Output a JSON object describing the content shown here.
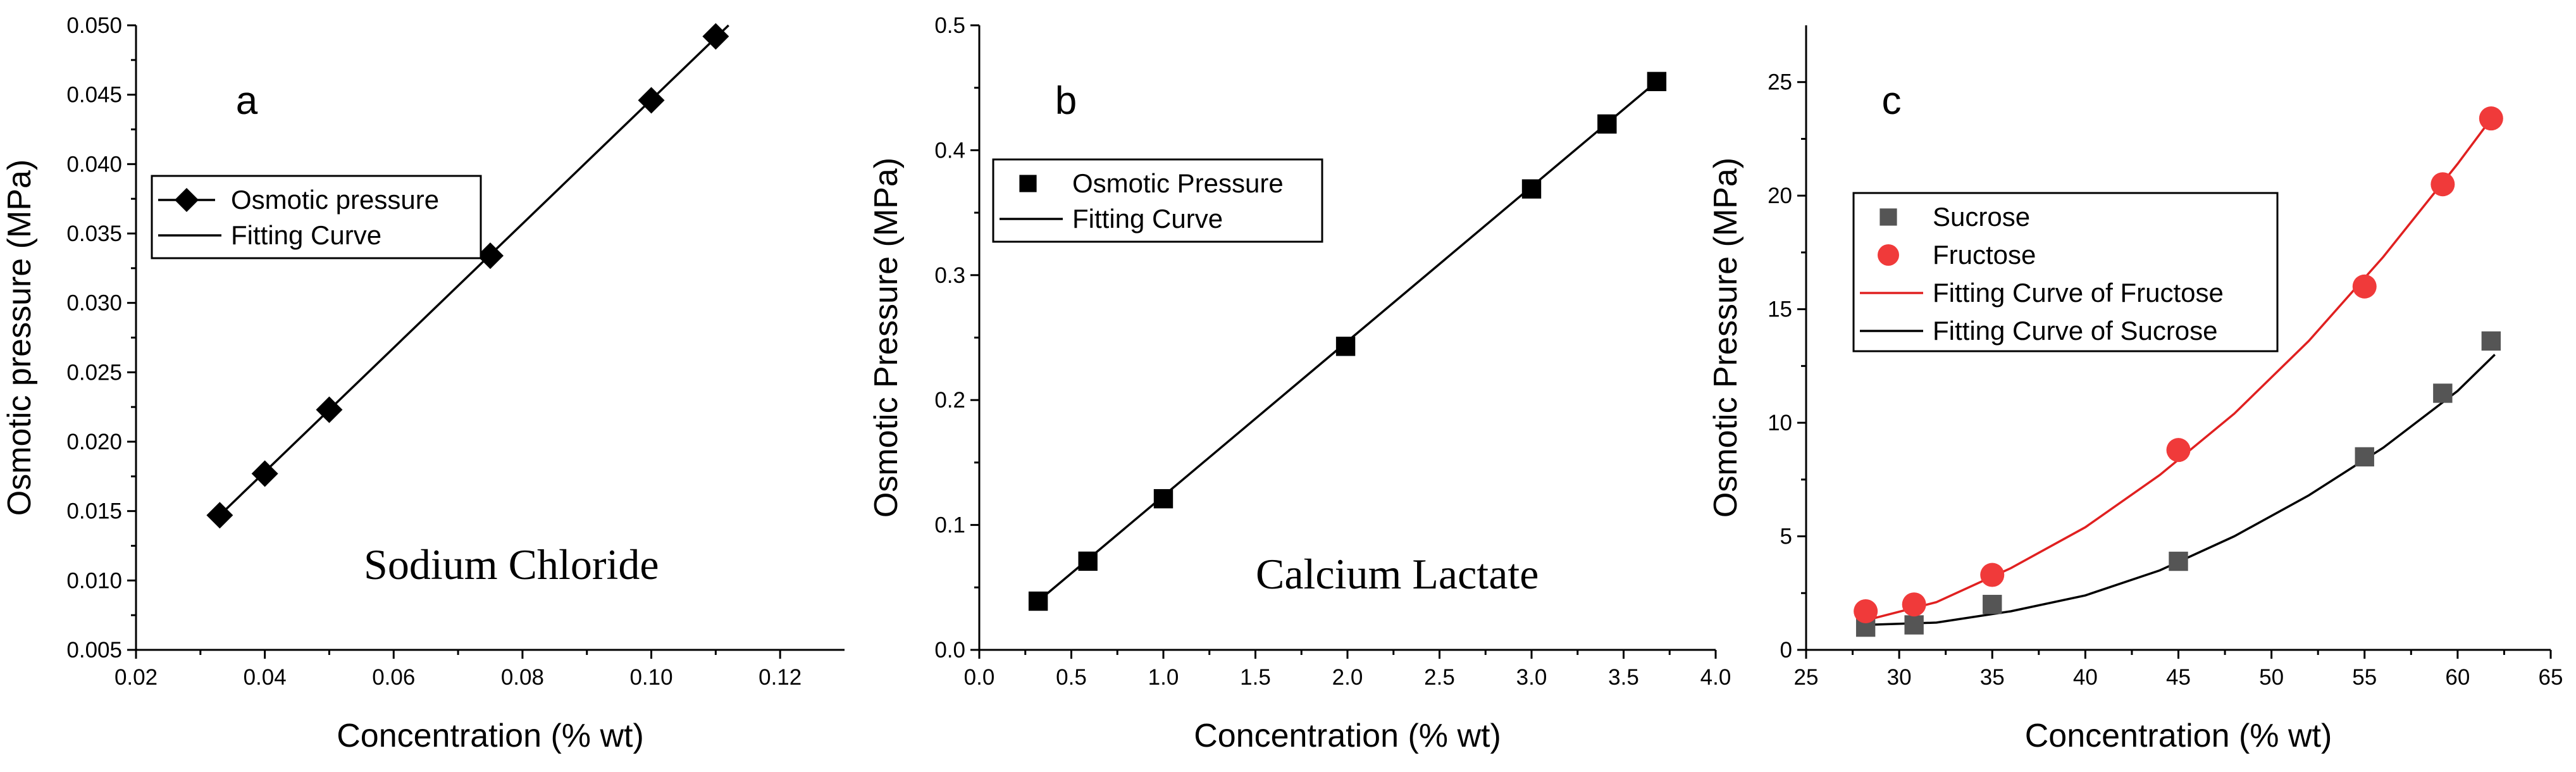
{
  "chart_data": [
    {
      "type": "line",
      "panel_label": "a",
      "annotation": "Sodium Chloride",
      "xlabel": "Concentration (% wt)",
      "ylabel": "Osmotic pressure (MPa)",
      "xlim": [
        0.02,
        0.13
      ],
      "ylim": [
        0.005,
        0.05
      ],
      "x_ticks": [
        0.02,
        0.04,
        0.06,
        0.08,
        0.1,
        0.12
      ],
      "x_tick_labels": [
        "0.02",
        "0.04",
        "0.06",
        "0.08",
        "0.10",
        "0.12"
      ],
      "y_ticks": [
        0.005,
        0.01,
        0.015,
        0.02,
        0.025,
        0.03,
        0.035,
        0.04,
        0.045,
        0.05
      ],
      "y_tick_labels": [
        "0.005",
        "0.010",
        "0.015",
        "0.020",
        "0.025",
        "0.030",
        "0.035",
        "0.040",
        "0.045",
        "0.050"
      ],
      "legend_position": "upper-left",
      "series": [
        {
          "name": "Osmotic pressure",
          "kind": "scatter",
          "marker": "diamond",
          "color": "#000000",
          "x": [
            0.033,
            0.04,
            0.05,
            0.075,
            0.1,
            0.11
          ],
          "y": [
            0.0147,
            0.0177,
            0.0223,
            0.0334,
            0.0446,
            0.0492
          ]
        },
        {
          "name": "Fitting Curve",
          "kind": "line",
          "color": "#000000",
          "x": [
            0.033,
            0.112
          ],
          "y": [
            0.0147,
            0.05
          ]
        }
      ]
    },
    {
      "type": "line",
      "panel_label": "b",
      "annotation": "Calcium Lactate",
      "xlabel": "Concentration (% wt)",
      "ylabel": "Osmotic Pressure (MPa)",
      "xlim": [
        0.0,
        4.0
      ],
      "ylim": [
        0.0,
        0.5
      ],
      "x_ticks": [
        0.0,
        0.5,
        1.0,
        1.5,
        2.0,
        2.5,
        3.0,
        3.5,
        4.0
      ],
      "x_tick_labels": [
        "0.0",
        "0.5",
        "1.0",
        "1.5",
        "2.0",
        "2.5",
        "3.0",
        "3.5",
        "4.0"
      ],
      "y_ticks": [
        0.0,
        0.1,
        0.2,
        0.3,
        0.4,
        0.5
      ],
      "y_tick_labels": [
        "0.0",
        "0.1",
        "0.2",
        "0.3",
        "0.4",
        "0.5"
      ],
      "legend_position": "upper-left",
      "series": [
        {
          "name": "Osmotic Pressure",
          "kind": "scatter",
          "marker": "square",
          "color": "#000000",
          "x": [
            0.32,
            0.59,
            1.0,
            1.99,
            3.0,
            3.41,
            3.68
          ],
          "y": [
            0.039,
            0.071,
            0.121,
            0.243,
            0.369,
            0.421,
            0.455
          ]
        },
        {
          "name": "Fitting Curve",
          "kind": "line",
          "color": "#000000",
          "x": [
            0.32,
            3.68
          ],
          "y": [
            0.039,
            0.455
          ]
        }
      ]
    },
    {
      "type": "scatter",
      "panel_label": "c",
      "xlabel": "Concentration (% wt)",
      "ylabel": "Osmotic Pressure (MPa)",
      "xlim": [
        25,
        65
      ],
      "ylim": [
        0,
        27.5
      ],
      "x_ticks": [
        25,
        30,
        35,
        40,
        45,
        50,
        55,
        60,
        65
      ],
      "x_tick_labels": [
        "25",
        "30",
        "35",
        "40",
        "45",
        "50",
        "55",
        "60",
        "65"
      ],
      "y_ticks": [
        0,
        5,
        10,
        15,
        20,
        25
      ],
      "y_tick_labels": [
        "0",
        "5",
        "10",
        "15",
        "20",
        "25"
      ],
      "legend_position": "upper-left",
      "series": [
        {
          "name": "Sucrose",
          "kind": "scatter",
          "marker": "square",
          "color": "#555555",
          "x": [
            28.2,
            30.8,
            35,
            45,
            55,
            59.2,
            61.8
          ],
          "y": [
            1.0,
            1.1,
            2.0,
            3.9,
            8.5,
            11.3,
            13.6
          ]
        },
        {
          "name": "Fructose",
          "kind": "scatter",
          "marker": "circle",
          "color": "#f03a3a",
          "x": [
            28.2,
            30.8,
            35,
            45,
            55,
            59.2,
            61.8
          ],
          "y": [
            1.7,
            2.0,
            3.3,
            8.8,
            16.0,
            20.5,
            23.4
          ]
        },
        {
          "name": "Fitting Curve of Fructose",
          "kind": "curve",
          "color": "#e02020",
          "x": [
            28.2,
            32,
            36,
            40,
            44,
            48,
            52,
            56,
            60,
            62
          ],
          "y": [
            1.3,
            2.1,
            3.6,
            5.4,
            7.7,
            10.4,
            13.6,
            17.3,
            21.4,
            23.6
          ]
        },
        {
          "name": "Fitting Curve of Sucrose",
          "kind": "curve",
          "color": "#000000",
          "x": [
            28.2,
            32,
            36,
            40,
            44,
            48,
            52,
            56,
            60,
            62
          ],
          "y": [
            1.1,
            1.2,
            1.7,
            2.4,
            3.5,
            5.0,
            6.8,
            8.9,
            11.4,
            13.0
          ]
        }
      ]
    }
  ]
}
